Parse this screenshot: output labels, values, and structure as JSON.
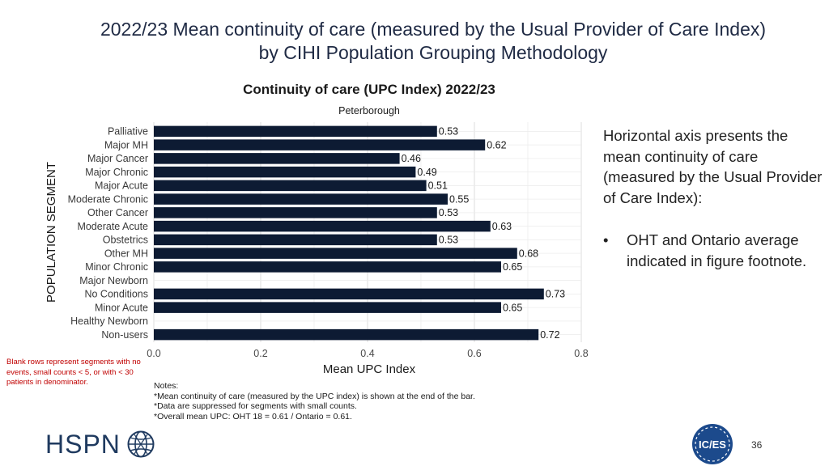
{
  "slide": {
    "title_line1": "2022/23 Mean continuity of care (measured by the Usual Provider of Care Index)",
    "title_line2": "by CIHI Population Grouping Methodology",
    "side_text": "Horizontal axis presents the mean continuity of care (measured by the Usual Provider of Care Index):",
    "bullet_symbol": "•",
    "bullet_text": "OHT and Ontario average indicated in figure footnote.",
    "blank_note": "Blank rows represent segments with no events, small counts < 5, or with < 30 patients in denominator.",
    "notes": [
      "Notes:",
      "*Mean continuity of care (measured by the UPC index) is shown at the end of the bar.",
      "*Data are suppressed for segments with small counts.",
      "*Overall mean UPC: OHT 18 = 0.61 / Ontario = 0.61."
    ],
    "page_number": "36",
    "logo_hspn": "HSPN",
    "logo_ices": "IC/ES"
  },
  "colors": {
    "bar": "#0d1b33",
    "grid": "#dcdcdc",
    "title_text": "#1f2a44",
    "note_red": "#c00000",
    "logo_navy": "#1f3a5f",
    "ices_blue": "#1c4a8c"
  },
  "chart_data": {
    "type": "bar",
    "orientation": "horizontal",
    "title": "Continuity of care (UPC Index) 2022/23",
    "subtitle": "Peterborough",
    "xlabel": "Mean UPC Index",
    "ylabel": "POPULATION SEGMENT",
    "xlim": [
      0,
      0.8
    ],
    "xticks": [
      "0.0",
      "0.2",
      "0.4",
      "0.6",
      "0.8"
    ],
    "xtick_values": [
      0,
      0.2,
      0.4,
      0.6,
      0.8
    ],
    "grid": true,
    "categories": [
      "Palliative",
      "Major MH",
      "Major Cancer",
      "Major Chronic",
      "Major Acute",
      "Moderate Chronic",
      "Other Cancer",
      "Moderate Acute",
      "Obstetrics",
      "Other MH",
      "Minor Chronic",
      "Major Newborn",
      "No Conditions",
      "Minor Acute",
      "Healthy Newborn",
      "Non-users"
    ],
    "values": [
      0.53,
      0.62,
      0.46,
      0.49,
      0.51,
      0.55,
      0.53,
      0.63,
      0.53,
      0.68,
      0.65,
      null,
      0.73,
      0.65,
      null,
      0.72
    ],
    "data_labels": [
      "0.53",
      "0.62",
      "0.46",
      "0.49",
      "0.51",
      "0.55",
      "0.53",
      "0.63",
      "0.53",
      "0.68",
      "0.65",
      "",
      "0.73",
      "0.65",
      "",
      "0.72"
    ]
  }
}
